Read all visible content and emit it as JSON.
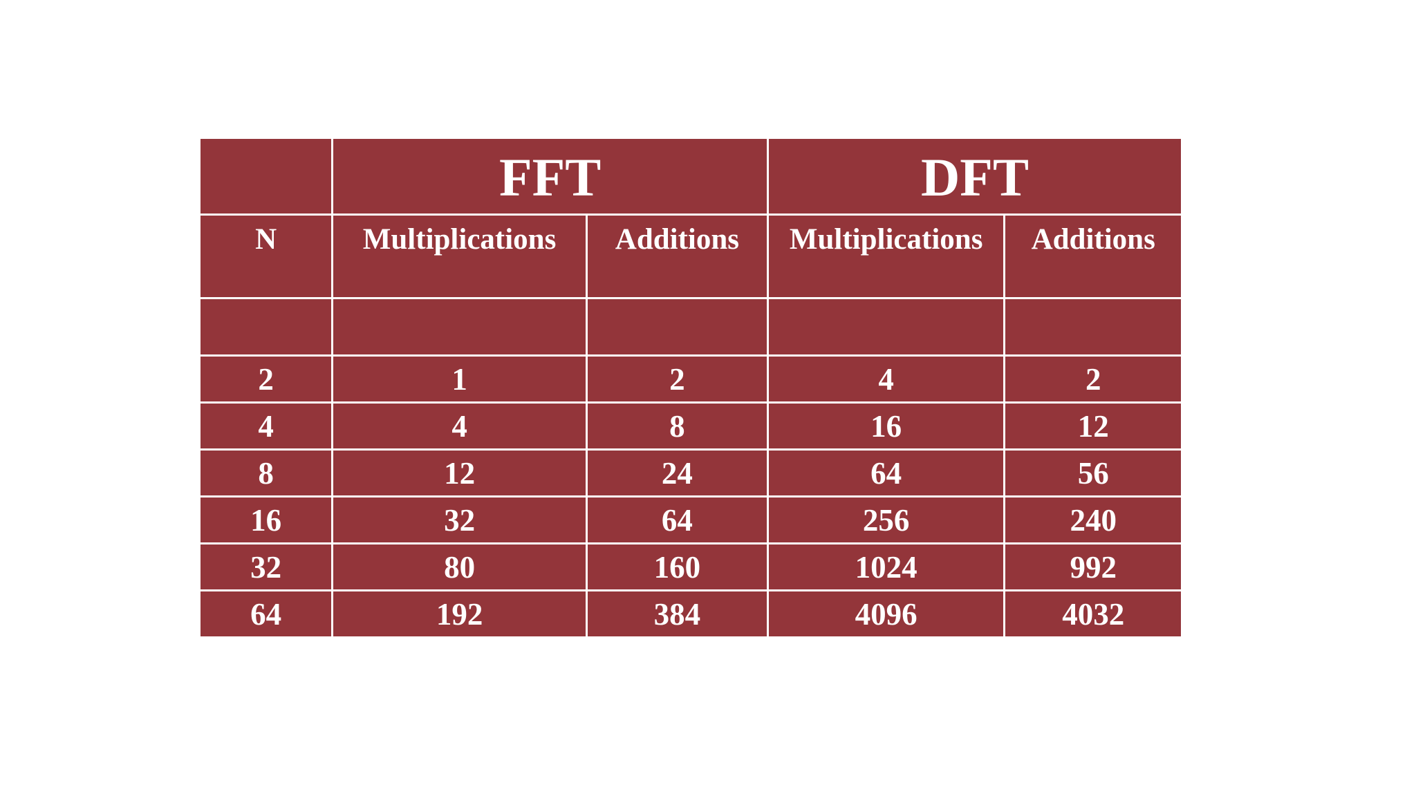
{
  "table": {
    "groups": {
      "corner": "",
      "fft": "FFT",
      "dft": "DFT"
    },
    "subheaders": [
      "N",
      "Multiplications",
      "Additions",
      "Multiplications",
      "Additions"
    ],
    "rows": [
      [
        "2",
        "1",
        "2",
        "4",
        "2"
      ],
      [
        "4",
        "4",
        "8",
        "16",
        "12"
      ],
      [
        "8",
        "12",
        "24",
        "64",
        "56"
      ],
      [
        "16",
        "32",
        "64",
        "256",
        "240"
      ],
      [
        "32",
        "80",
        "160",
        "1024",
        "992"
      ],
      [
        "64",
        "192",
        "384",
        "4096",
        "4032"
      ]
    ]
  },
  "colors": {
    "cell_background": "#93353a",
    "text": "#ffffff",
    "grid_lines": "#ffffff",
    "page_background": "#ffffff"
  }
}
